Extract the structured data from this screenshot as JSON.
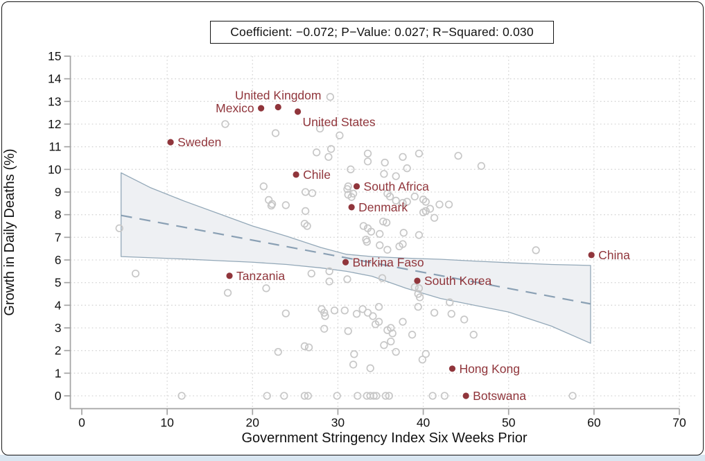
{
  "figure": {
    "border_color": "#141414",
    "page_strip_color": "#d9e6f1",
    "background": "#ffffff"
  },
  "chart_data": {
    "type": "scatter",
    "title": "Coefficient: −0.072; P−Value: 0.027; R−Squared: 0.030",
    "xlabel": "Government Stringency Index Six Weeks Prior",
    "ylabel": "Growth in Daily Deaths (%)",
    "xlim": [
      0,
      70
    ],
    "ylim": [
      0,
      15
    ],
    "xticks": [
      0,
      10,
      20,
      30,
      40,
      50,
      60,
      70
    ],
    "yticks": [
      0,
      1,
      2,
      3,
      4,
      5,
      6,
      7,
      8,
      9,
      10,
      11,
      12,
      13,
      14,
      15
    ],
    "grid": "dotted",
    "legend": "none",
    "colors": {
      "labeled_point": "#90353b",
      "label_text": "#90353b",
      "unlabeled_stroke": "#c7c7c7",
      "band_fill": "#eef0f3",
      "band_edge": "#93a8b8",
      "regression_line": "#8aa0b4",
      "grid_color": "#d4d4d4",
      "axis_color": "#a3a3a3",
      "tick_text": "#111111"
    },
    "labeled_points": [
      {
        "name": "Sweden",
        "x": 10.4,
        "y": 11.2,
        "side": "right"
      },
      {
        "name": "Mexico",
        "x": 21.0,
        "y": 12.7,
        "side": "left"
      },
      {
        "name": "United Kingdom",
        "x": 23.0,
        "y": 12.75,
        "side": "above"
      },
      {
        "name": "United States",
        "x": 25.3,
        "y": 12.55,
        "side": "below-right"
      },
      {
        "name": "Chile",
        "x": 25.1,
        "y": 9.77,
        "side": "right"
      },
      {
        "name": "South Africa",
        "x": 32.2,
        "y": 9.25,
        "side": "right"
      },
      {
        "name": "Denmark",
        "x": 31.6,
        "y": 8.33,
        "side": "right"
      },
      {
        "name": "Burkina Faso",
        "x": 30.9,
        "y": 5.9,
        "side": "right"
      },
      {
        "name": "Tanzania",
        "x": 17.3,
        "y": 5.3,
        "side": "right"
      },
      {
        "name": "South Korea",
        "x": 39.3,
        "y": 5.08,
        "side": "right"
      },
      {
        "name": "China",
        "x": 59.7,
        "y": 6.22,
        "side": "right"
      },
      {
        "name": "Hong Kong",
        "x": 43.4,
        "y": 1.2,
        "side": "right"
      },
      {
        "name": "Botswana",
        "x": 45.0,
        "y": 0.0,
        "side": "right"
      }
    ],
    "unlabeled_points": [
      [
        29.1,
        13.2
      ],
      [
        16.8,
        12.0
      ],
      [
        22.7,
        11.6
      ],
      [
        27.9,
        11.8
      ],
      [
        30.2,
        11.5
      ],
      [
        29.2,
        10.9
      ],
      [
        27.5,
        10.75
      ],
      [
        28.9,
        10.55
      ],
      [
        33.5,
        10.7
      ],
      [
        33.5,
        10.35
      ],
      [
        35.5,
        10.3
      ],
      [
        37.6,
        10.55
      ],
      [
        39.5,
        10.7
      ],
      [
        44.1,
        10.6
      ],
      [
        46.8,
        10.15
      ],
      [
        31.5,
        10.0
      ],
      [
        38.1,
        10.05
      ],
      [
        21.3,
        9.25
      ],
      [
        35.4,
        9.8
      ],
      [
        36.8,
        9.7
      ],
      [
        31.2,
        9.25
      ],
      [
        31.1,
        9.13
      ],
      [
        21.9,
        8.65
      ],
      [
        22.2,
        8.4
      ],
      [
        26.2,
        9.0
      ],
      [
        27.0,
        8.95
      ],
      [
        31.8,
        8.93
      ],
      [
        31.2,
        8.88
      ],
      [
        31.6,
        8.78
      ],
      [
        22.3,
        8.47
      ],
      [
        23.9,
        8.42
      ],
      [
        35.8,
        8.93
      ],
      [
        36.1,
        8.8
      ],
      [
        36.8,
        8.62
      ],
      [
        37.6,
        8.52
      ],
      [
        38.1,
        8.57
      ],
      [
        39.0,
        8.8
      ],
      [
        40.0,
        8.67
      ],
      [
        40.3,
        8.57
      ],
      [
        40.8,
        8.26
      ],
      [
        41.9,
        8.45
      ],
      [
        43.0,
        8.45
      ],
      [
        26.2,
        8.16
      ],
      [
        40.3,
        8.16
      ],
      [
        41.3,
        7.86
      ],
      [
        40.0,
        8.1
      ],
      [
        26.1,
        7.6
      ],
      [
        35.7,
        7.65
      ],
      [
        33.0,
        7.5
      ],
      [
        35.3,
        7.7
      ],
      [
        4.4,
        7.4
      ],
      [
        26.4,
        7.5
      ],
      [
        33.5,
        7.4
      ],
      [
        33.9,
        7.25
      ],
      [
        33.3,
        6.9
      ],
      [
        33.4,
        6.8
      ],
      [
        34.9,
        7.15
      ],
      [
        37.7,
        7.2
      ],
      [
        39.5,
        7.1
      ],
      [
        34.9,
        6.65
      ],
      [
        37.2,
        6.6
      ],
      [
        37.6,
        6.7
      ],
      [
        35.8,
        6.45
      ],
      [
        53.2,
        6.43
      ],
      [
        6.3,
        5.4
      ],
      [
        26.9,
        5.4
      ],
      [
        29.0,
        5.5
      ],
      [
        29.0,
        5.05
      ],
      [
        31.1,
        5.15
      ],
      [
        35.2,
        5.2
      ],
      [
        21.6,
        4.75
      ],
      [
        17.1,
        4.55
      ],
      [
        39.0,
        4.8
      ],
      [
        39.5,
        4.75
      ],
      [
        39.4,
        4.5
      ],
      [
        39.6,
        4.35
      ],
      [
        43.1,
        4.13
      ],
      [
        23.9,
        3.64
      ],
      [
        28.1,
        3.83
      ],
      [
        28.4,
        3.67
      ],
      [
        28.5,
        3.52
      ],
      [
        29.6,
        3.77
      ],
      [
        30.8,
        3.77
      ],
      [
        32.2,
        3.62
      ],
      [
        32.9,
        3.83
      ],
      [
        33.5,
        3.67
      ],
      [
        34.8,
        3.93
      ],
      [
        34.1,
        3.52
      ],
      [
        39.4,
        3.93
      ],
      [
        41.3,
        3.67
      ],
      [
        43.3,
        3.62
      ],
      [
        44.8,
        3.37
      ],
      [
        34.8,
        3.27
      ],
      [
        37.6,
        3.27
      ],
      [
        34.4,
        3.16
      ],
      [
        28.4,
        2.96
      ],
      [
        31.2,
        2.86
      ],
      [
        35.8,
        2.9
      ],
      [
        36.2,
        3.0
      ],
      [
        36.4,
        2.76
      ],
      [
        38.7,
        2.7
      ],
      [
        45.9,
        2.7
      ],
      [
        36.2,
        2.4
      ],
      [
        35.4,
        2.24
      ],
      [
        26.1,
        2.19
      ],
      [
        26.6,
        2.14
      ],
      [
        23.0,
        1.94
      ],
      [
        31.9,
        1.84
      ],
      [
        36.8,
        1.94
      ],
      [
        39.9,
        1.6
      ],
      [
        40.3,
        1.85
      ],
      [
        31.8,
        1.38
      ],
      [
        33.8,
        1.22
      ],
      [
        11.7,
        0
      ],
      [
        21.7,
        0
      ],
      [
        23.7,
        0
      ],
      [
        26.1,
        0
      ],
      [
        26.5,
        0
      ],
      [
        29.9,
        0
      ],
      [
        32.3,
        0
      ],
      [
        33.4,
        0
      ],
      [
        33.8,
        0
      ],
      [
        34.2,
        0
      ],
      [
        34.5,
        0
      ],
      [
        35.6,
        0
      ],
      [
        36.0,
        0
      ],
      [
        41.1,
        0
      ],
      [
        42.5,
        0
      ],
      [
        57.5,
        0
      ]
    ],
    "regression": {
      "x1": 4.6,
      "y1": 7.97,
      "x2": 59.6,
      "y2": 4.06,
      "style": "dashed"
    },
    "ci_band": {
      "x": [
        4.6,
        8,
        12,
        16,
        20,
        24,
        28,
        31,
        34,
        38,
        42,
        46,
        50,
        55,
        59.6
      ],
      "upper": [
        9.85,
        9.2,
        8.6,
        8.05,
        7.5,
        7.05,
        6.55,
        6.25,
        6.15,
        6.08,
        6.03,
        5.95,
        5.88,
        5.8,
        5.76
      ],
      "lower": [
        6.15,
        6.1,
        6.04,
        5.97,
        5.9,
        5.8,
        5.65,
        5.5,
        5.28,
        4.75,
        4.3,
        4.0,
        3.7,
        3.08,
        2.32
      ]
    }
  }
}
